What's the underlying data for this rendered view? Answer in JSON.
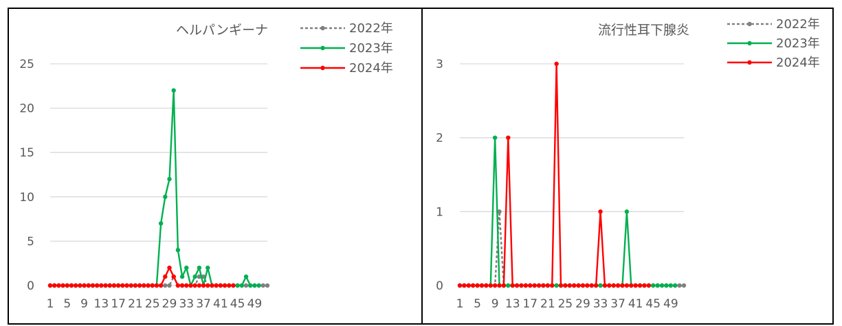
{
  "colors": {
    "2022": "#808080",
    "2023": "#00b050",
    "2024": "#ff0000",
    "grid": "#d9d9d9",
    "frame": "#000000"
  },
  "chart_data": [
    {
      "type": "line",
      "title": "ヘルパンギーナ",
      "x": [
        1,
        2,
        3,
        4,
        5,
        6,
        7,
        8,
        9,
        10,
        11,
        12,
        13,
        14,
        15,
        16,
        17,
        18,
        19,
        20,
        21,
        22,
        23,
        24,
        25,
        26,
        27,
        28,
        29,
        30,
        31,
        32,
        33,
        34,
        35,
        36,
        37,
        38,
        39,
        40,
        41,
        42,
        43,
        44,
        45,
        46,
        47,
        48,
        49,
        50,
        51,
        52
      ],
      "xticks": [
        "1",
        "5",
        "9",
        "13",
        "17",
        "21",
        "25",
        "29",
        "33",
        "37",
        "41",
        "45",
        "49"
      ],
      "ylim": [
        0,
        25
      ],
      "yticks": [
        "0",
        "5",
        "10",
        "15",
        "20",
        "25"
      ],
      "grid": true,
      "legend": "top-right",
      "series": [
        {
          "name": "2022年",
          "style": "dashed",
          "values": [
            0,
            0,
            0,
            0,
            0,
            0,
            0,
            0,
            0,
            0,
            0,
            0,
            0,
            0,
            0,
            0,
            0,
            0,
            0,
            0,
            0,
            0,
            0,
            0,
            0,
            0,
            0,
            0,
            0,
            1,
            0,
            0,
            0,
            0,
            0,
            1,
            1,
            0,
            0,
            0,
            0,
            0,
            0,
            0,
            0,
            0,
            0,
            0,
            0,
            0,
            0,
            0
          ]
        },
        {
          "name": "2023年",
          "style": "solid",
          "values": [
            0,
            0,
            0,
            0,
            0,
            0,
            0,
            0,
            0,
            0,
            0,
            0,
            0,
            0,
            0,
            0,
            0,
            0,
            0,
            0,
            0,
            0,
            0,
            0,
            0,
            0,
            7,
            10,
            12,
            22,
            4,
            1,
            2,
            0,
            1,
            2,
            0,
            2,
            0,
            0,
            0,
            0,
            0,
            0,
            0,
            0,
            1,
            0,
            0,
            0,
            null,
            null
          ]
        },
        {
          "name": "2024年",
          "style": "solid",
          "values": [
            0,
            0,
            0,
            0,
            0,
            0,
            0,
            0,
            0,
            0,
            0,
            0,
            0,
            0,
            0,
            0,
            0,
            0,
            0,
            0,
            0,
            0,
            0,
            0,
            0,
            0,
            0,
            1,
            2,
            1,
            0,
            0,
            0,
            0,
            0,
            0,
            0,
            0,
            0,
            0,
            0,
            0,
            0,
            0,
            null,
            null,
            null,
            null,
            null,
            null,
            null,
            null
          ]
        }
      ]
    },
    {
      "type": "line",
      "title": "流行性耳下腺炎",
      "x": [
        1,
        2,
        3,
        4,
        5,
        6,
        7,
        8,
        9,
        10,
        11,
        12,
        13,
        14,
        15,
        16,
        17,
        18,
        19,
        20,
        21,
        22,
        23,
        24,
        25,
        26,
        27,
        28,
        29,
        30,
        31,
        32,
        33,
        34,
        35,
        36,
        37,
        38,
        39,
        40,
        41,
        42,
        43,
        44,
        45,
        46,
        47,
        48,
        49,
        50,
        51,
        52
      ],
      "xticks": [
        "1",
        "5",
        "9",
        "13",
        "17",
        "21",
        "25",
        "29",
        "33",
        "37",
        "41",
        "45",
        "49"
      ],
      "ylim": [
        0,
        3
      ],
      "yticks": [
        "0",
        "1",
        "2",
        "3"
      ],
      "grid": true,
      "legend": "top-right",
      "series": [
        {
          "name": "2022年",
          "style": "dashed",
          "values": [
            0,
            0,
            0,
            0,
            0,
            0,
            0,
            0,
            0,
            1,
            0,
            0,
            0,
            0,
            0,
            0,
            0,
            0,
            0,
            0,
            0,
            0,
            0,
            0,
            0,
            0,
            0,
            0,
            0,
            0,
            0,
            0,
            0,
            0,
            0,
            0,
            0,
            0,
            0,
            0,
            0,
            0,
            0,
            0,
            0,
            0,
            0,
            0,
            0,
            0,
            0,
            0
          ]
        },
        {
          "name": "2023年",
          "style": "solid",
          "values": [
            0,
            0,
            0,
            0,
            0,
            0,
            0,
            0,
            2,
            0,
            0,
            0,
            0,
            0,
            0,
            0,
            0,
            0,
            0,
            0,
            0,
            0,
            0,
            0,
            0,
            0,
            0,
            0,
            0,
            0,
            0,
            0,
            0,
            0,
            0,
            0,
            0,
            0,
            1,
            0,
            0,
            0,
            0,
            0,
            0,
            0,
            0,
            0,
            0,
            0,
            null,
            null
          ]
        },
        {
          "name": "2024年",
          "style": "solid",
          "values": [
            0,
            0,
            0,
            0,
            0,
            0,
            0,
            0,
            0,
            0,
            0,
            2,
            0,
            0,
            0,
            0,
            0,
            0,
            0,
            0,
            0,
            0,
            3,
            0,
            0,
            0,
            0,
            0,
            0,
            0,
            0,
            0,
            1,
            0,
            0,
            0,
            0,
            0,
            0,
            0,
            0,
            0,
            0,
            0,
            null,
            null,
            null,
            null,
            null,
            null,
            null,
            null
          ]
        }
      ]
    }
  ]
}
